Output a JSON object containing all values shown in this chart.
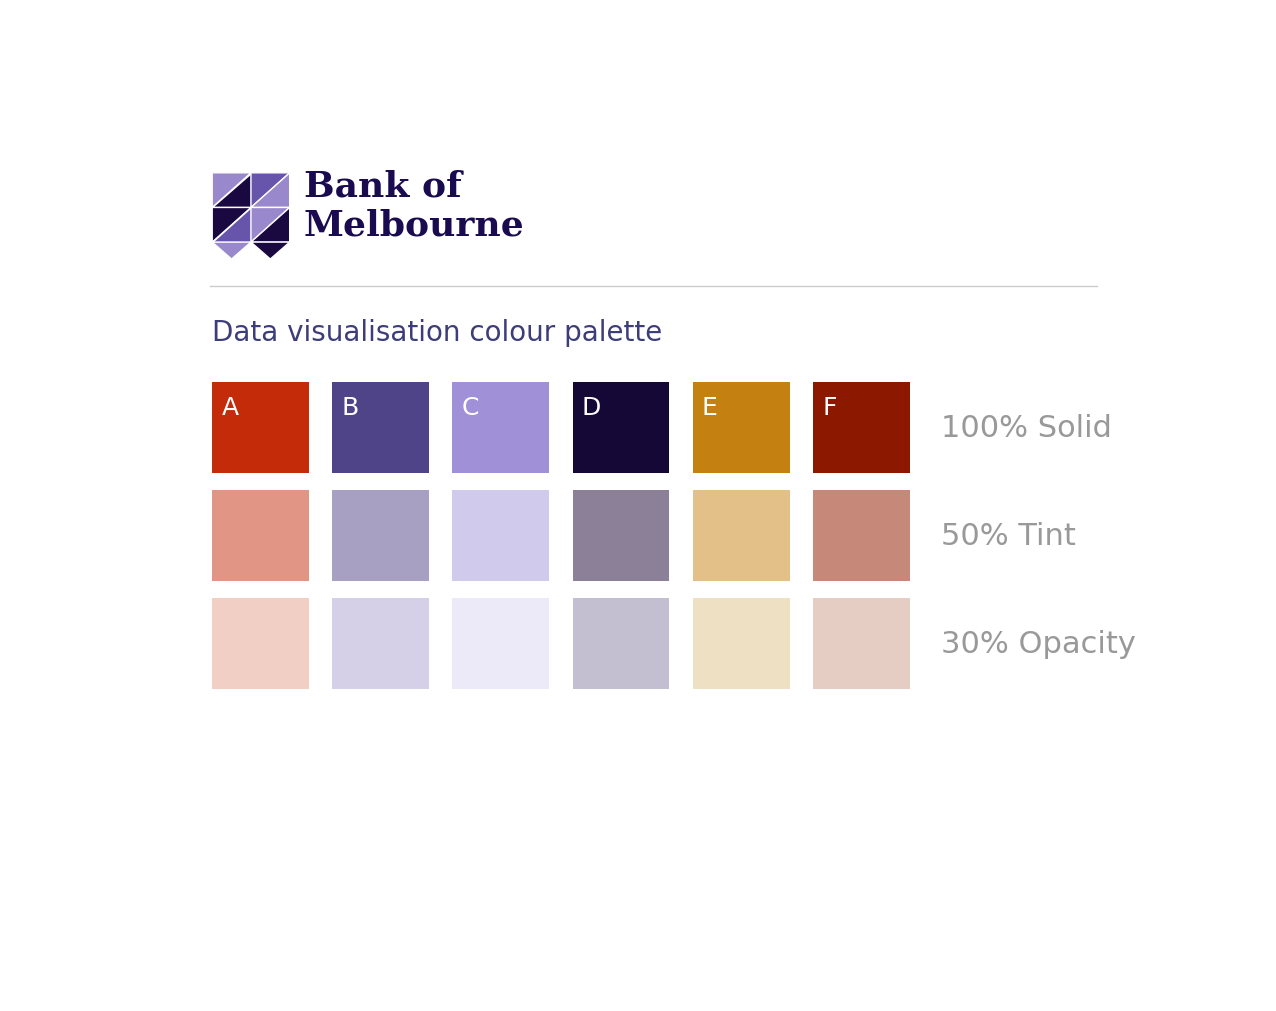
{
  "title": "Data visualisation colour palette",
  "background_color": "#ffffff",
  "title_color": "#3d3d7a",
  "title_fontsize": 20,
  "bank_name_color": "#1a0a50",
  "row_labels": [
    "100% Solid",
    "50% Tint",
    "30% Opacity"
  ],
  "row_label_color": "#999999",
  "row_label_fontsize": 22,
  "col_labels": [
    "A",
    "B",
    "C",
    "D",
    "E",
    "F"
  ],
  "col_label_color": "#ffffff",
  "col_label_fontsize": 18,
  "solid_colors": [
    "#c42b08",
    "#504488",
    "#a090d8",
    "#160836",
    "#c48010",
    "#8c1800"
  ],
  "tint_50_colors": [
    "#e19584",
    "#a8a0c3",
    "#d0caec",
    "#8b8098",
    "#e2c088",
    "#c68878"
  ],
  "opacity_30_colors": [
    "#f2cfc4",
    "#d5d0e8",
    "#eceaf8",
    "#c4bfd0",
    "#eee0c2",
    "#e6cdc4"
  ],
  "separator_color": "#cccccc",
  "logo_dark": "#1a0840",
  "logo_mid": "#6655aa",
  "logo_light": "#9988cc"
}
